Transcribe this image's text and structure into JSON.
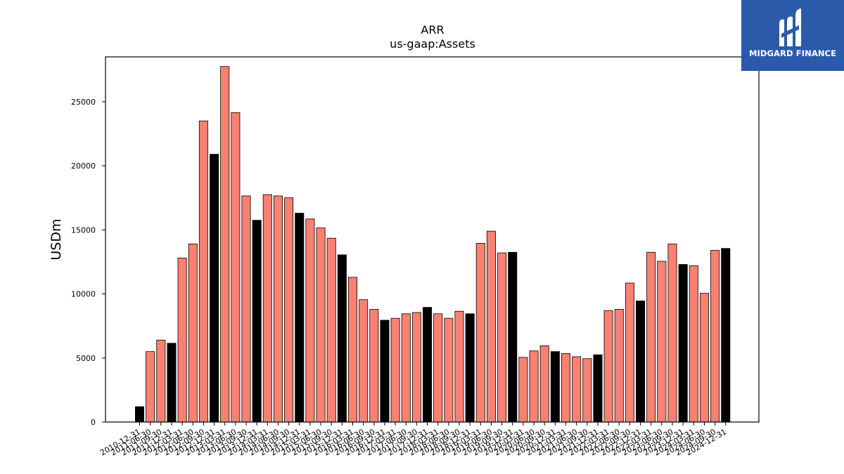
{
  "brand": {
    "name": "MIDGARD FINANCE",
    "background": "#2b5aab"
  },
  "colors": {
    "annual": "#000000",
    "quarterly": "#fa8072",
    "edge": "#000000"
  },
  "chart_data": {
    "type": "bar",
    "title": "ARR",
    "subtitle": "us-gaap:Assets",
    "xlabel": "",
    "ylabel": "USDm",
    "ylim": [
      0,
      28500
    ],
    "yticks": [
      0,
      5000,
      10000,
      15000,
      20000,
      25000
    ],
    "grid": false,
    "categories": [
      "2010-12-31",
      "2011-06-30",
      "2011-09-30",
      "2011-12-31",
      "2012-03-31",
      "2012-06-30",
      "2012-09-30",
      "2012-12-31",
      "2013-03-31",
      "2013-06-30",
      "2013-09-30",
      "2013-12-31",
      "2014-03-31",
      "2014-06-30",
      "2014-09-30",
      "2014-12-31",
      "2015-03-31",
      "2015-06-30",
      "2015-09-30",
      "2015-12-31",
      "2016-03-31",
      "2016-06-30",
      "2016-09-30",
      "2016-12-31",
      "2017-03-31",
      "2017-06-30",
      "2017-09-30",
      "2017-12-31",
      "2018-03-31",
      "2018-06-30",
      "2018-09-30",
      "2018-12-31",
      "2019-03-31",
      "2019-06-30",
      "2019-09-30",
      "2019-12-31",
      "2020-03-31",
      "2020-06-30",
      "2020-09-30",
      "2020-12-31",
      "2021-03-31",
      "2021-06-30",
      "2021-09-30",
      "2021-12-31",
      "2022-03-31",
      "2022-06-30",
      "2022-09-30",
      "2022-12-31",
      "2023-03-31",
      "2023-06-30",
      "2023-09-30",
      "2023-12-31",
      "2024-03-31",
      "2024-06-30",
      "2024-09-30",
      "2024-12-31"
    ],
    "values": [
      1200,
      5500,
      6400,
      6150,
      12800,
      13900,
      23500,
      20900,
      27750,
      24150,
      17650,
      15750,
      17750,
      17650,
      17500,
      16300,
      15850,
      15150,
      14350,
      13050,
      11300,
      9550,
      8800,
      7950,
      8100,
      8450,
      8550,
      8950,
      8450,
      8100,
      8650,
      8450,
      13950,
      14900,
      13200,
      13250,
      5050,
      5550,
      5950,
      5500,
      5350,
      5100,
      4950,
      5250,
      8700,
      8800,
      10850,
      9450,
      13250,
      12550,
      13900,
      12300,
      12200,
      10050,
      13400,
      13550
    ],
    "is_annual": [
      true,
      false,
      false,
      true,
      false,
      false,
      false,
      true,
      false,
      false,
      false,
      true,
      false,
      false,
      false,
      true,
      false,
      false,
      false,
      true,
      false,
      false,
      false,
      true,
      false,
      false,
      false,
      true,
      false,
      false,
      false,
      true,
      false,
      false,
      false,
      true,
      false,
      false,
      false,
      true,
      false,
      false,
      false,
      true,
      false,
      false,
      false,
      true,
      false,
      false,
      false,
      true,
      false,
      false,
      false,
      true
    ]
  }
}
